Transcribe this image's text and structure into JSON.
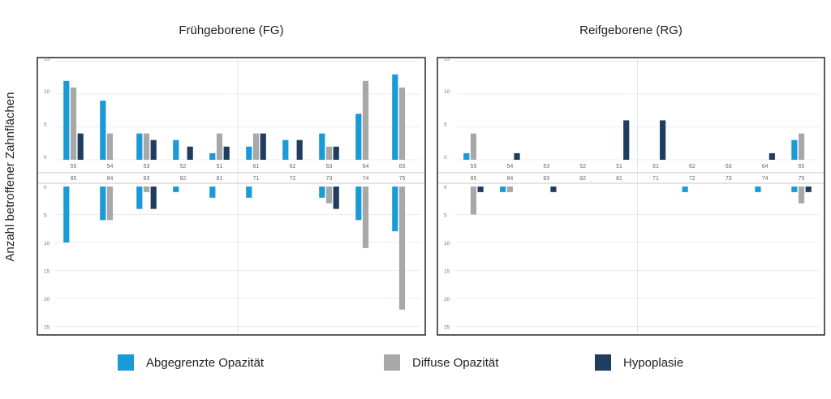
{
  "y_axis_label": "Anzahl betroffener Zahnflächen",
  "colors": {
    "Abgegrenzte Opazität": "#1a9ad6",
    "Diffuse Opazität": "#a8a8a8",
    "Hypoplasie": "#1f3d5e"
  },
  "legend": [
    "Abgegrenzte Opazität",
    "Diffuse Opazität",
    "Hypoplasie"
  ],
  "chart_data": [
    {
      "type": "bar",
      "title": "Frühgeborene (FG)",
      "upper": {
        "categories": [
          "55",
          "54",
          "53",
          "52",
          "51",
          "61",
          "62",
          "63",
          "64",
          "65"
        ],
        "yticks": [
          "15",
          "10",
          "5",
          "0"
        ],
        "ylim": [
          0,
          15
        ],
        "series": [
          {
            "name": "Abgegrenzte Opazität",
            "values": [
              12,
              9,
              4,
              3,
              1,
              2,
              3,
              4,
              7,
              13
            ]
          },
          {
            "name": "Diffuse Opazität",
            "values": [
              11,
              4,
              4,
              0,
              4,
              4,
              0,
              2,
              12,
              11
            ]
          },
          {
            "name": "Hypoplasie",
            "values": [
              4,
              0,
              3,
              2,
              2,
              4,
              3,
              2,
              0,
              0
            ]
          }
        ]
      },
      "lower": {
        "categories": [
          "85",
          "84",
          "83",
          "82",
          "81",
          "71",
          "72",
          "73",
          "74",
          "75"
        ],
        "yticks": [
          "0",
          "5",
          "10",
          "15",
          "20",
          "25"
        ],
        "ylim": [
          0,
          25
        ],
        "series": [
          {
            "name": "Abgegrenzte Opazität",
            "values": [
              10,
              6,
              4,
              1,
              2,
              2,
              0,
              2,
              6,
              8
            ]
          },
          {
            "name": "Diffuse Opazität",
            "values": [
              0,
              6,
              1,
              0,
              0,
              0,
              0,
              3,
              11,
              22
            ]
          },
          {
            "name": "Hypoplasie",
            "values": [
              0,
              0,
              4,
              0,
              0,
              0,
              0,
              4,
              0,
              0
            ]
          }
        ]
      }
    },
    {
      "type": "bar",
      "title": "Reifgeborene (RG)",
      "upper": {
        "categories": [
          "55",
          "54",
          "53",
          "52",
          "51",
          "61",
          "62",
          "63",
          "64",
          "65"
        ],
        "yticks": [
          "15",
          "10",
          "5",
          "0"
        ],
        "ylim": [
          0,
          15
        ],
        "series": [
          {
            "name": "Abgegrenzte Opazität",
            "values": [
              1,
              0,
              0,
              0,
              0,
              0,
              0,
              0,
              0,
              3
            ]
          },
          {
            "name": "Diffuse Opazität",
            "values": [
              4,
              0,
              0,
              0,
              0,
              0,
              0,
              0,
              0,
              4
            ]
          },
          {
            "name": "Hypoplasie",
            "values": [
              0,
              1,
              0,
              0,
              6,
              6,
              0,
              0,
              1,
              0
            ]
          }
        ]
      },
      "lower": {
        "categories": [
          "85",
          "84",
          "83",
          "82",
          "81",
          "71",
          "72",
          "73",
          "74",
          "75"
        ],
        "yticks": [
          "0",
          "5",
          "10",
          "15",
          "20",
          "25"
        ],
        "ylim": [
          0,
          25
        ],
        "series": [
          {
            "name": "Abgegrenzte Opazität",
            "values": [
              0,
              1,
              0,
              0,
              0,
              0,
              1,
              0,
              1,
              1
            ]
          },
          {
            "name": "Diffuse Opazität",
            "values": [
              5,
              1,
              0,
              0,
              0,
              0,
              0,
              0,
              0,
              3
            ]
          },
          {
            "name": "Hypoplasie",
            "values": [
              1,
              0,
              1,
              0,
              0,
              0,
              0,
              0,
              0,
              1
            ]
          }
        ]
      }
    }
  ]
}
